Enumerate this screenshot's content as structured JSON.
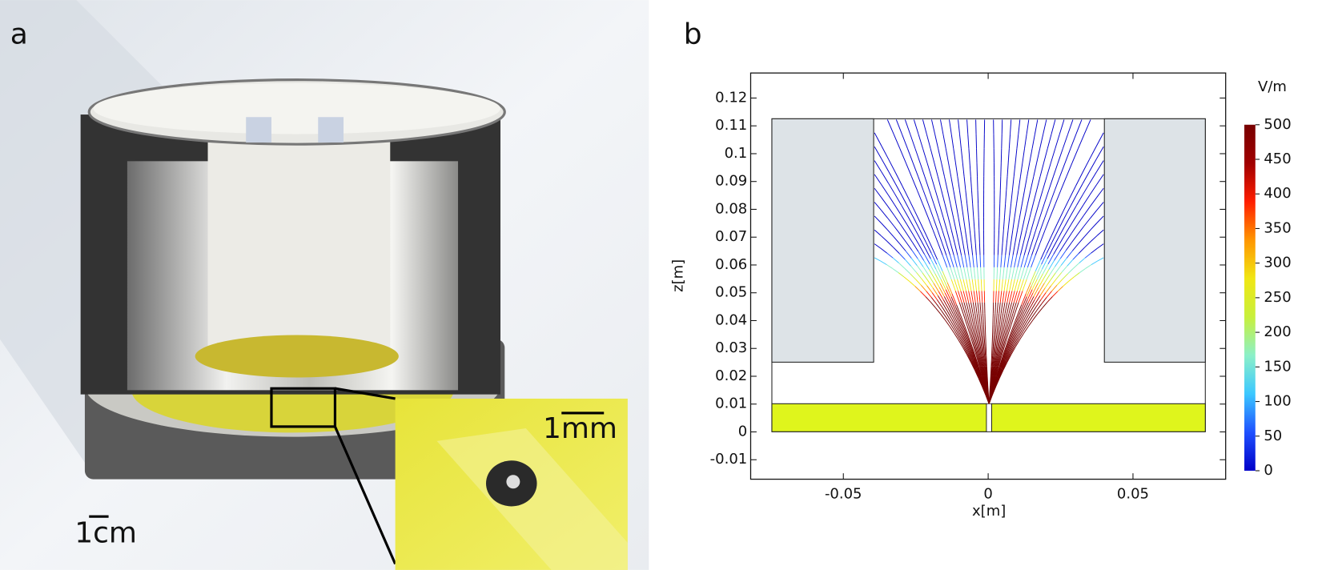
{
  "panel_labels": [
    "a",
    "b"
  ],
  "panel_a": {
    "scale_bars": [
      "1cm",
      "1mm"
    ]
  },
  "chart_data": {
    "type": "field-lines",
    "xlabel": "x[m]",
    "ylabel": "z[m]",
    "xlim": [
      -0.082,
      0.082
    ],
    "ylim": [
      -0.017,
      0.129
    ],
    "xticks": [
      -0.05,
      0,
      0.05
    ],
    "yticks": [
      -0.01,
      0,
      0.01,
      0.02,
      0.03,
      0.04,
      0.05,
      0.06,
      0.07,
      0.08,
      0.09,
      0.1,
      0.11,
      0.12
    ],
    "colorbar": {
      "label": "V/m",
      "lim": [
        0,
        500
      ],
      "ticks": [
        0,
        50,
        100,
        150,
        200,
        250,
        300,
        350,
        400,
        450,
        500
      ],
      "colors": [
        "#0000c8",
        "#1e50ff",
        "#3cc8ff",
        "#8cf0c8",
        "#c8f03c",
        "#f0e614",
        "#ff9600",
        "#ff1e00",
        "#a00000",
        "#780000"
      ]
    }
  }
}
